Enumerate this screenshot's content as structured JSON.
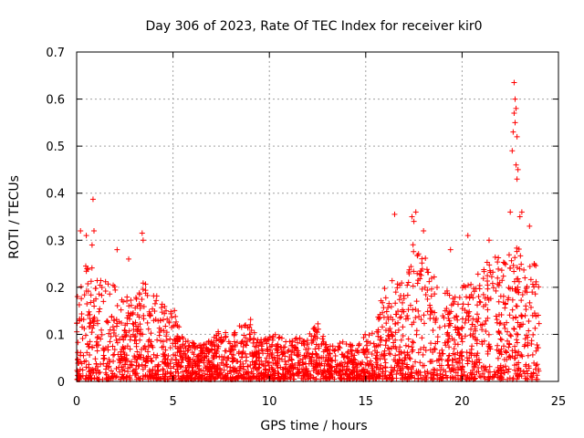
{
  "chart_data": {
    "type": "scatter",
    "title": "Day 306 of 2023, Rate Of TEC Index for receiver kir0",
    "xlabel": "GPS time / hours",
    "ylabel": "ROTI / TECUs",
    "xlim": [
      0,
      25
    ],
    "ylim": [
      0,
      0.7
    ],
    "xticks": [
      "0",
      "5",
      "10",
      "15",
      "20",
      "25"
    ],
    "yticks": [
      "0",
      "0.1",
      "0.2",
      "0.3",
      "0.4",
      "0.5",
      "0.6",
      "0.7"
    ],
    "grid": true,
    "marker": "+",
    "color": "#ff0000",
    "envelope": [
      [
        0.0,
        0.17
      ],
      [
        0.5,
        0.25
      ],
      [
        1.0,
        0.24
      ],
      [
        1.5,
        0.22
      ],
      [
        2.0,
        0.2
      ],
      [
        2.5,
        0.18
      ],
      [
        3.0,
        0.17
      ],
      [
        3.5,
        0.22
      ],
      [
        4.0,
        0.19
      ],
      [
        4.5,
        0.16
      ],
      [
        5.0,
        0.16
      ],
      [
        5.5,
        0.09
      ],
      [
        6.0,
        0.08
      ],
      [
        6.5,
        0.08
      ],
      [
        7.0,
        0.09
      ],
      [
        7.5,
        0.11
      ],
      [
        8.0,
        0.09
      ],
      [
        8.5,
        0.12
      ],
      [
        9.0,
        0.13
      ],
      [
        9.5,
        0.09
      ],
      [
        10.0,
        0.09
      ],
      [
        10.5,
        0.1
      ],
      [
        11.0,
        0.08
      ],
      [
        11.5,
        0.09
      ],
      [
        12.0,
        0.09
      ],
      [
        12.5,
        0.13
      ],
      [
        13.0,
        0.07
      ],
      [
        13.5,
        0.08
      ],
      [
        14.0,
        0.08
      ],
      [
        14.5,
        0.07
      ],
      [
        15.0,
        0.11
      ],
      [
        15.5,
        0.13
      ],
      [
        16.0,
        0.2
      ],
      [
        16.5,
        0.22
      ],
      [
        17.0,
        0.2
      ],
      [
        17.5,
        0.3
      ],
      [
        18.0,
        0.27
      ],
      [
        18.5,
        0.22
      ],
      [
        19.0,
        0.21
      ],
      [
        19.5,
        0.19
      ],
      [
        20.0,
        0.2
      ],
      [
        20.5,
        0.22
      ],
      [
        21.0,
        0.24
      ],
      [
        21.5,
        0.26
      ],
      [
        22.0,
        0.26
      ],
      [
        22.5,
        0.27
      ],
      [
        23.0,
        0.29
      ],
      [
        23.5,
        0.27
      ],
      [
        24.0,
        0.25
      ]
    ],
    "outliers": [
      {
        "x": 0.2,
        "y": 0.32
      },
      {
        "x": 0.5,
        "y": 0.31
      },
      {
        "x": 0.8,
        "y": 0.29
      },
      {
        "x": 0.85,
        "y": 0.387
      },
      {
        "x": 0.9,
        "y": 0.32
      },
      {
        "x": 2.1,
        "y": 0.28
      },
      {
        "x": 2.7,
        "y": 0.26
      },
      {
        "x": 3.4,
        "y": 0.315
      },
      {
        "x": 3.45,
        "y": 0.3
      },
      {
        "x": 16.5,
        "y": 0.355
      },
      {
        "x": 17.4,
        "y": 0.35
      },
      {
        "x": 17.5,
        "y": 0.34
      },
      {
        "x": 17.6,
        "y": 0.36
      },
      {
        "x": 18.0,
        "y": 0.32
      },
      {
        "x": 19.4,
        "y": 0.28
      },
      {
        "x": 20.3,
        "y": 0.31
      },
      {
        "x": 21.4,
        "y": 0.3
      },
      {
        "x": 22.5,
        "y": 0.36
      },
      {
        "x": 22.6,
        "y": 0.49
      },
      {
        "x": 22.65,
        "y": 0.53
      },
      {
        "x": 22.7,
        "y": 0.635
      },
      {
        "x": 22.7,
        "y": 0.57
      },
      {
        "x": 22.75,
        "y": 0.6
      },
      {
        "x": 22.75,
        "y": 0.55
      },
      {
        "x": 22.8,
        "y": 0.58
      },
      {
        "x": 22.8,
        "y": 0.46
      },
      {
        "x": 22.85,
        "y": 0.52
      },
      {
        "x": 22.85,
        "y": 0.43
      },
      {
        "x": 22.9,
        "y": 0.45
      },
      {
        "x": 23.0,
        "y": 0.35
      },
      {
        "x": 23.1,
        "y": 0.36
      },
      {
        "x": 23.5,
        "y": 0.33
      }
    ]
  }
}
